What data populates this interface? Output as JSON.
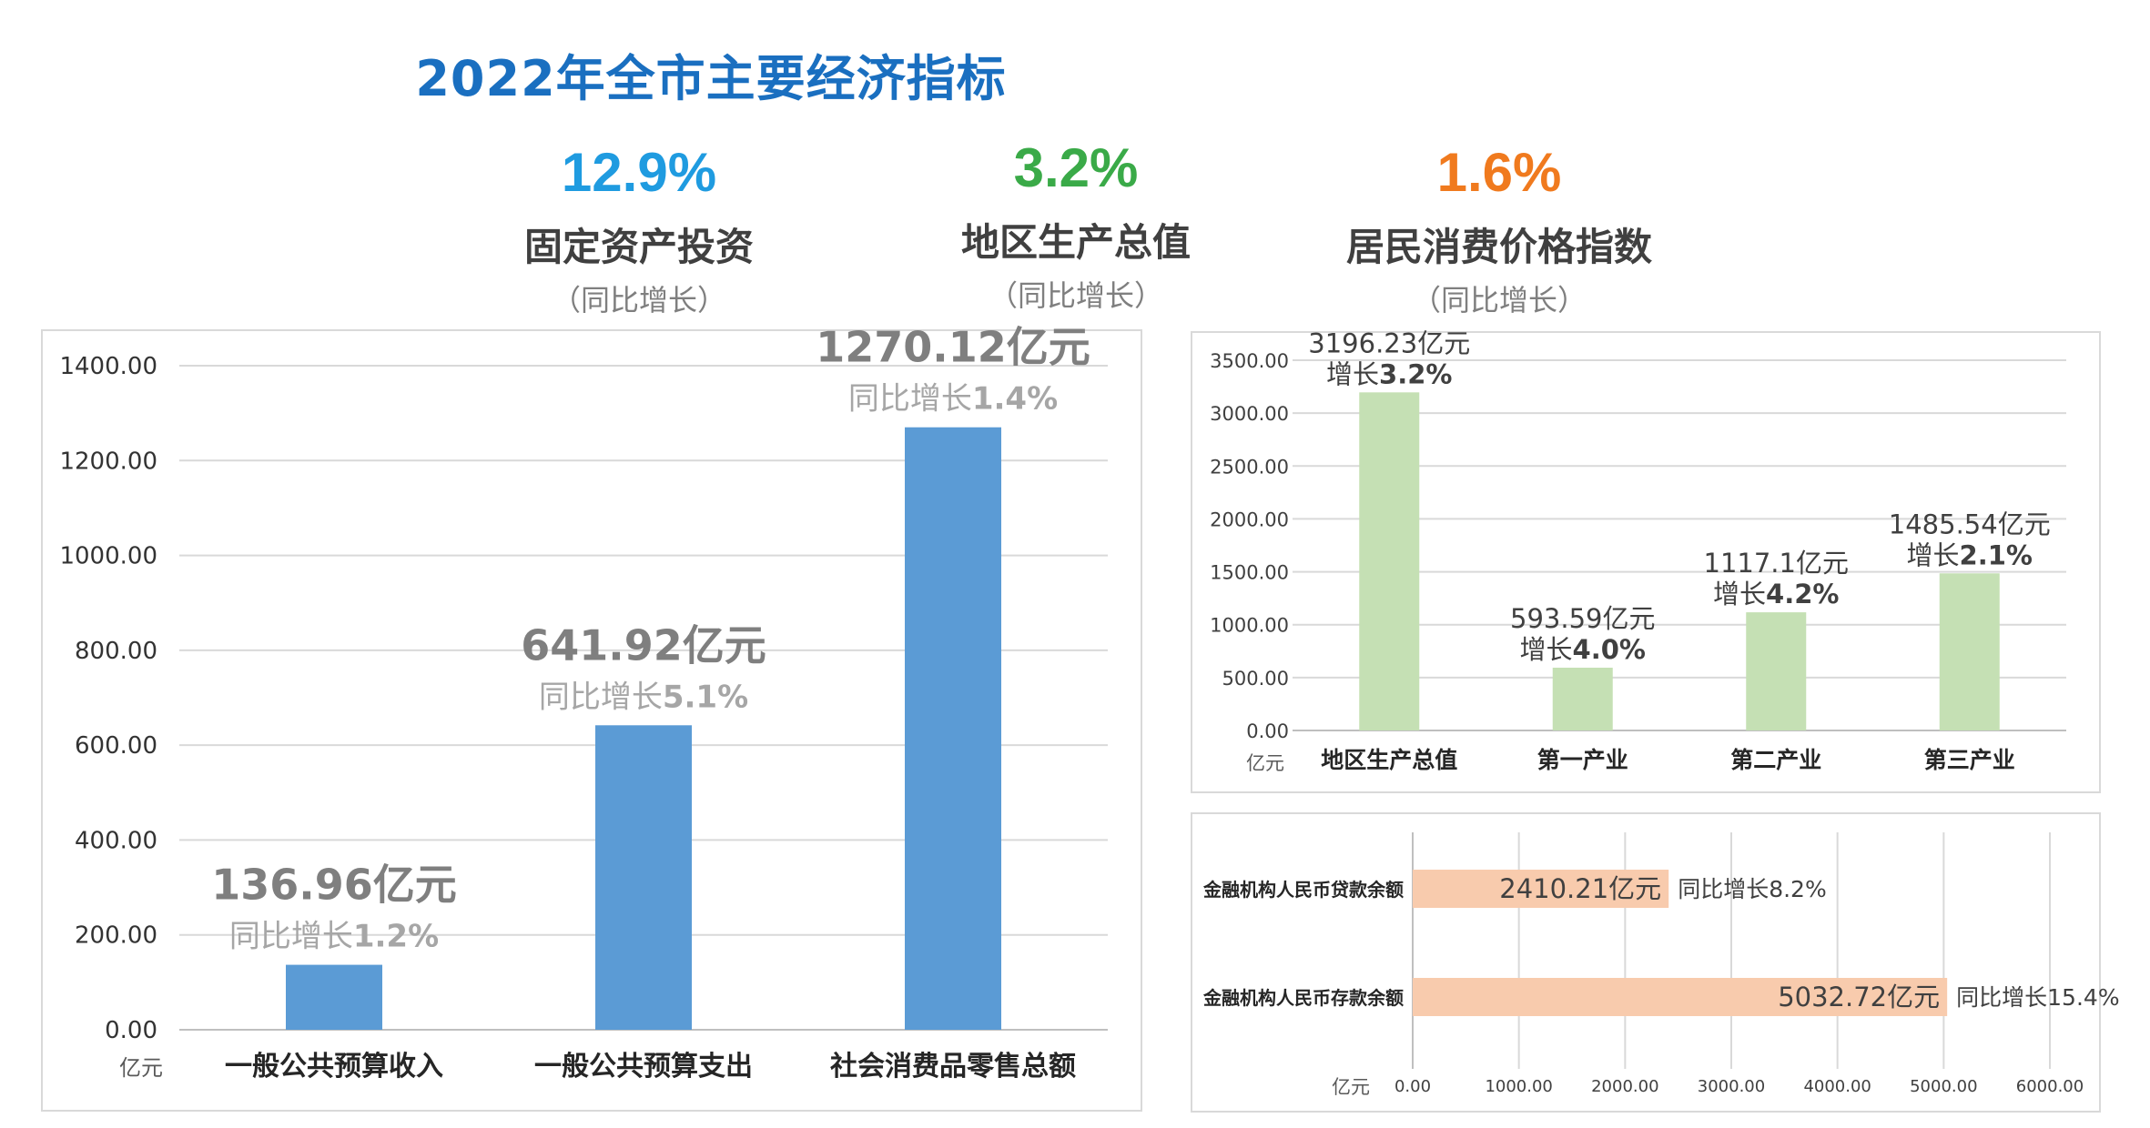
{
  "page_title": "2022年全市主要经济指标",
  "kpis": [
    {
      "value": "12.9%",
      "label": "固定资产投资",
      "sub": "（同比增长）",
      "color": "#1f9be0"
    },
    {
      "value": "3.2%",
      "label": "地区生产总值",
      "sub": "（同比增长）",
      "color": "#3aaa48"
    },
    {
      "value": "1.6%",
      "label": "居民消费价格指数",
      "sub": "（同比增长）",
      "color": "#f07a1e"
    }
  ],
  "chart_data": [
    {
      "type": "bar",
      "unit_label": "亿元",
      "categories": [
        "一般公共预算收入",
        "一般公共预算支出",
        "社会消费品零售总额"
      ],
      "values": [
        136.96,
        641.92,
        1270.12
      ],
      "value_labels": [
        "136.96亿元",
        "641.92亿元",
        "1270.12亿元"
      ],
      "growth_prefix": "同比增长",
      "growth": [
        "1.2%",
        "5.1%",
        "1.4%"
      ],
      "yticks": [
        "0.00",
        "200.00",
        "400.00",
        "600.00",
        "800.00",
        "1000.00",
        "1200.00",
        "1400.00"
      ],
      "ylim": [
        0,
        1400
      ],
      "bar_color": "#5b9bd5"
    },
    {
      "type": "bar",
      "unit_label": "亿元",
      "categories": [
        "地区生产总值",
        "第一产业",
        "第二产业",
        "第三产业"
      ],
      "values": [
        3196.23,
        593.59,
        1117.1,
        1485.54
      ],
      "value_labels": [
        "3196.23亿元",
        "593.59亿元",
        "1117.1亿元",
        "1485.54亿元"
      ],
      "growth_prefix": "增长",
      "growth": [
        "3.2%",
        "4.0%",
        "4.2%",
        "2.1%"
      ],
      "yticks": [
        "0.00",
        "500.00",
        "1000.00",
        "1500.00",
        "2000.00",
        "2500.00",
        "3000.00",
        "3500.00"
      ],
      "ylim": [
        0,
        3500
      ],
      "bar_color": "#c5e0b4"
    },
    {
      "type": "bar",
      "orientation": "horizontal",
      "unit_label": "亿元",
      "categories": [
        "金融机构人民币贷款余额",
        "金融机构人民币存款余额"
      ],
      "values": [
        2410.21,
        5032.72
      ],
      "value_labels": [
        "2410.21亿元",
        "5032.72亿元"
      ],
      "growth_prefix": "同比增长",
      "growth": [
        "8.2%",
        "15.4%"
      ],
      "xticks": [
        "0.00",
        "1000.00",
        "2000.00",
        "3000.00",
        "4000.00",
        "5000.00",
        "6000.00"
      ],
      "xlim": [
        0,
        6000
      ],
      "bar_color": "#f8cbad"
    }
  ]
}
